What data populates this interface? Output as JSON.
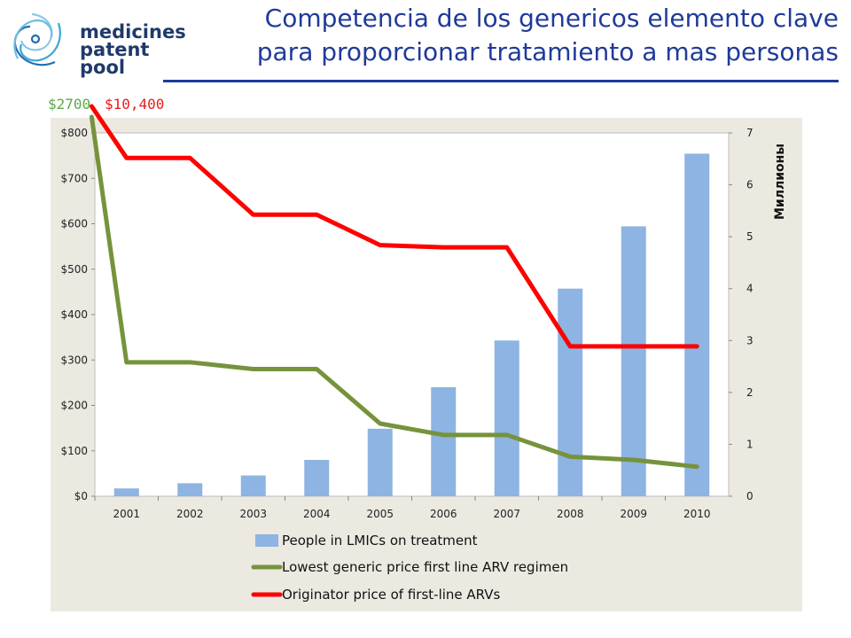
{
  "header": {
    "title_line1": "Competencia de los genericos elemento clave",
    "title_line2": "para proporcionar tratamiento a mas personas",
    "logo_line1": "medicines",
    "logo_line2": "patent",
    "logo_line3": "pool"
  },
  "annotations": {
    "generic_start_price": "$2700",
    "originator_start_price": "$10,400"
  },
  "colors": {
    "bars": "#8db4e2",
    "generic_line": "#76933c",
    "originator_line": "#ff0000",
    "title": "#1f3a9a",
    "plot_background": "#ece9e1"
  },
  "chart_data": {
    "type": "bar",
    "categories": [
      "2001",
      "2002",
      "2003",
      "2004",
      "2005",
      "2006",
      "2007",
      "2008",
      "2009",
      "2010"
    ],
    "y_left": {
      "ticks": [
        "$0",
        "$100",
        "$200",
        "$300",
        "$400",
        "$500",
        "$600",
        "$700",
        "$800"
      ],
      "ylim": [
        0,
        800
      ]
    },
    "y_right": {
      "label": "Миллионы",
      "ticks": [
        "0",
        "1",
        "2",
        "3",
        "4",
        "5",
        "6",
        "7"
      ],
      "ylim": [
        0,
        7
      ]
    },
    "series": [
      {
        "name": "People in LMICs on treatment",
        "type": "bar",
        "axis": "right",
        "values": [
          0.15,
          0.25,
          0.4,
          0.7,
          1.3,
          2.1,
          3.0,
          4.0,
          5.2,
          6.6
        ]
      },
      {
        "name": "Lowest generic price first line ARV regimen",
        "type": "line",
        "axis": "left",
        "start_value_offscale": 2700,
        "values": [
          295,
          295,
          280,
          280,
          160,
          135,
          135,
          87,
          80,
          65
        ]
      },
      {
        "name": "Originator price of first-line ARVs",
        "type": "line",
        "axis": "left",
        "start_value_offscale": 10400,
        "values": [
          745,
          745,
          620,
          620,
          553,
          548,
          548,
          330,
          330,
          330
        ]
      }
    ],
    "legend_position": "bottom"
  }
}
